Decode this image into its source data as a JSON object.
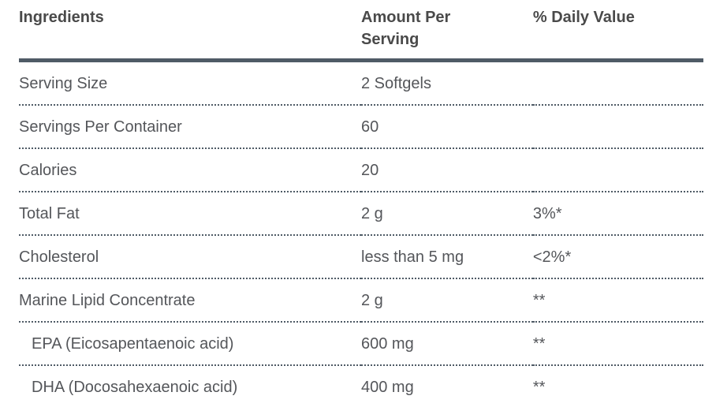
{
  "table": {
    "columns": {
      "ingredients": "Ingredients",
      "amount_per_serving": "Amount Per Serving",
      "daily_value": "% Daily Value"
    },
    "rows": [
      {
        "ingredient": "Serving Size",
        "amount": "2 Softgels",
        "daily_value": ""
      },
      {
        "ingredient": "Servings Per Container",
        "amount": "60",
        "daily_value": ""
      },
      {
        "ingredient": "Calories",
        "amount": "20",
        "daily_value": ""
      },
      {
        "ingredient": "Total Fat",
        "amount": "2 g",
        "daily_value": "3%*"
      },
      {
        "ingredient": "Cholesterol",
        "amount": "less than 5 mg",
        "daily_value": "<2%*"
      },
      {
        "ingredient": "Marine Lipid Concentrate",
        "amount": "2 g",
        "daily_value": "**"
      },
      {
        "ingredient": "EPA (Eicosapentaenoic acid)",
        "amount": "600 mg",
        "daily_value": "**"
      },
      {
        "ingredient": "DHA (Docosahexaenoic acid)",
        "amount": "400 mg",
        "daily_value": "**"
      }
    ],
    "colors": {
      "header_text": "#4a4a4a",
      "body_text": "#54565a",
      "rule": "#4f5b66",
      "background": "#ffffff"
    }
  }
}
